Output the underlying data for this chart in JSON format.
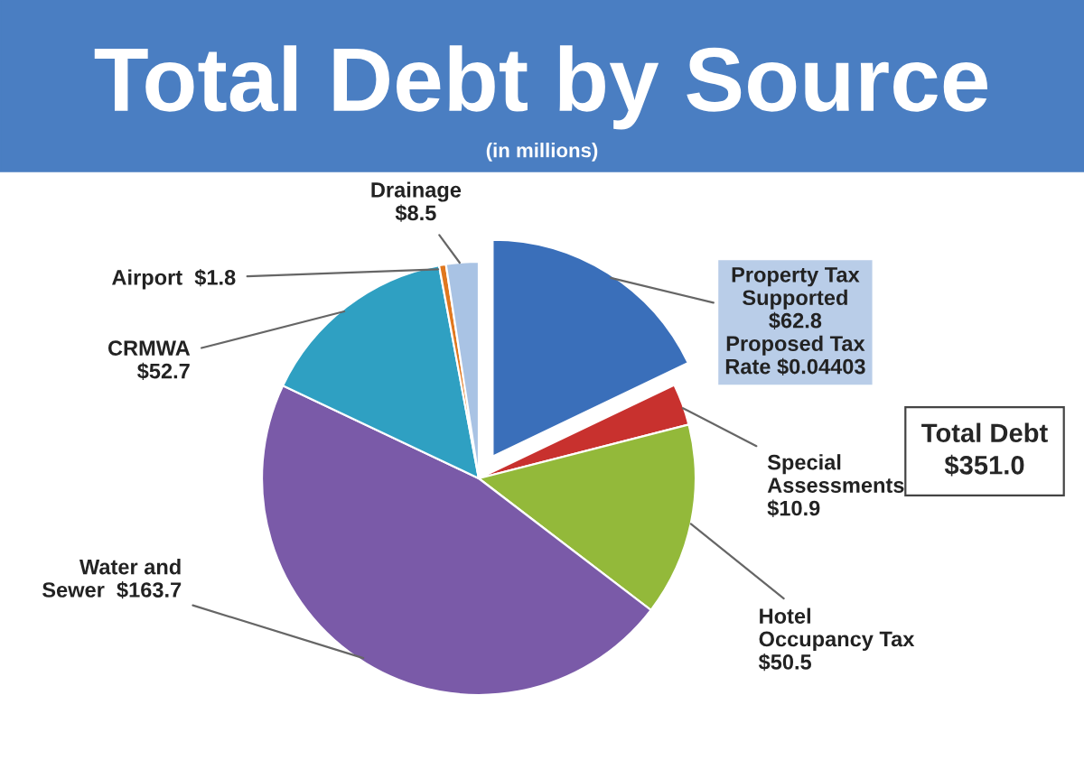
{
  "chart_data": {
    "type": "pie",
    "title": "Total Debt by Source",
    "subtitle": "(in millions)",
    "categories": [
      "Property Tax Supported",
      "Special Assessments",
      "Hotel Occupancy Tax",
      "Water and Sewer",
      "CRMWA",
      "Airport",
      "Drainage"
    ],
    "values": [
      62.8,
      10.9,
      50.5,
      163.7,
      52.7,
      1.8,
      8.5
    ],
    "value_labels": [
      "$62.8",
      "$10.9",
      "$50.5",
      "$163.7",
      "$52.7",
      "$1.8",
      "$8.5"
    ],
    "colors": [
      "#3a6fba",
      "#c8312e",
      "#93b93a",
      "#7a5aa8",
      "#2fa0c2",
      "#e0771e",
      "#a9c3e4"
    ],
    "annotations": [
      "Proposed Tax Rate $0.04403",
      "Total Debt $351.0"
    ],
    "legend": false
  }
}
